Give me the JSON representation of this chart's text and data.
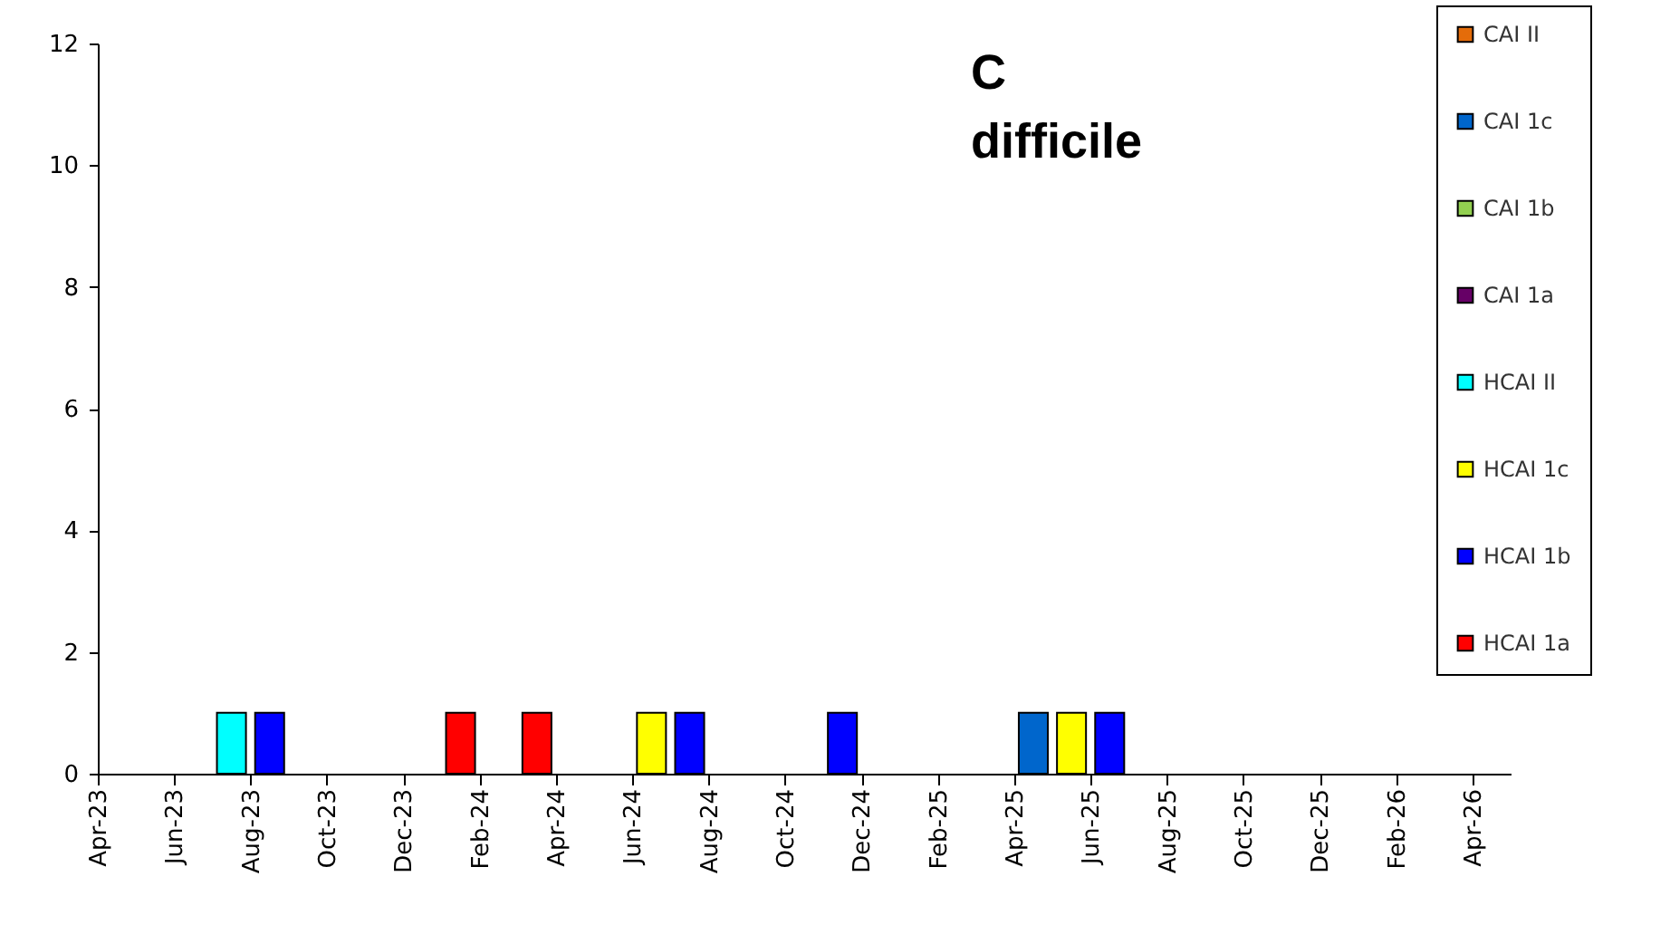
{
  "chart_data": {
    "type": "bar",
    "title": "C difficile",
    "stacked": true,
    "legend": "top right",
    "grid": false,
    "categories": [
      "Apr-23",
      null,
      "Jun-23",
      null,
      "Aug-23",
      null,
      "Oct-23",
      null,
      "Dec-23",
      null,
      "Feb-24",
      null,
      "Apr-24",
      null,
      "Jun-24",
      null,
      "Aug-24",
      null,
      "Oct-24",
      null,
      "Dec-24",
      null,
      "Feb-25",
      null,
      "Apr-25",
      null,
      "Jun-25",
      null,
      "Aug-25",
      null,
      "Oct-25",
      null,
      "Dec-25",
      null,
      "Feb-26",
      null,
      "Apr-26"
    ],
    "ylim": [
      0,
      12
    ],
    "yticks": [
      0,
      2,
      4,
      6,
      8,
      10,
      12
    ],
    "series": [
      {
        "name": "HCAI 1a",
        "color": "#ff0000",
        "values": [
          null,
          null,
          null,
          null,
          null,
          null,
          null,
          null,
          null,
          1,
          null,
          1,
          null,
          null,
          null,
          null,
          null,
          null,
          null,
          null,
          null,
          null,
          null,
          null,
          null,
          null,
          null,
          null,
          null,
          null,
          null,
          null,
          null,
          null,
          null,
          null,
          null
        ]
      },
      {
        "name": "HCAI 1b",
        "color": "#0000ff",
        "values": [
          null,
          null,
          null,
          null,
          1,
          null,
          null,
          null,
          null,
          null,
          null,
          null,
          null,
          null,
          null,
          1,
          null,
          null,
          null,
          1,
          null,
          null,
          null,
          null,
          null,
          null,
          1,
          null,
          null,
          null,
          null,
          null,
          null,
          null,
          null,
          null,
          null
        ]
      },
      {
        "name": "HCAI 1c",
        "color": "#ffff00",
        "values": [
          null,
          null,
          null,
          null,
          null,
          null,
          null,
          null,
          null,
          null,
          null,
          null,
          null,
          null,
          1,
          null,
          null,
          null,
          null,
          null,
          null,
          null,
          null,
          null,
          null,
          1,
          null,
          null,
          null,
          null,
          null,
          null,
          null,
          null,
          null,
          null,
          null
        ]
      },
      {
        "name": "HCAI II",
        "color": "#00ffff",
        "values": [
          null,
          null,
          null,
          1,
          null,
          null,
          null,
          null,
          null,
          null,
          null,
          null,
          null,
          null,
          null,
          null,
          null,
          null,
          null,
          null,
          null,
          null,
          null,
          null,
          null,
          null,
          null,
          null,
          null,
          null,
          null,
          null,
          null,
          null,
          null,
          null,
          null
        ]
      },
      {
        "name": "CAI 1a",
        "color": "#660066",
        "values": [
          null,
          null,
          null,
          null,
          null,
          null,
          null,
          null,
          null,
          null,
          null,
          null,
          null,
          null,
          null,
          null,
          null,
          null,
          null,
          null,
          null,
          null,
          null,
          null,
          null,
          null,
          null,
          null,
          null,
          null,
          null,
          null,
          null,
          null,
          null,
          null,
          null
        ]
      },
      {
        "name": "CAI 1b",
        "color": "#92d050",
        "values": [
          null,
          null,
          null,
          null,
          null,
          null,
          null,
          null,
          null,
          null,
          null,
          null,
          null,
          null,
          null,
          null,
          null,
          null,
          null,
          null,
          null,
          null,
          null,
          null,
          null,
          null,
          null,
          null,
          null,
          null,
          null,
          null,
          null,
          null,
          null,
          null,
          null
        ]
      },
      {
        "name": "CAI 1c",
        "color": "#0066cc",
        "values": [
          null,
          null,
          null,
          null,
          null,
          null,
          null,
          null,
          null,
          null,
          null,
          null,
          null,
          null,
          null,
          null,
          null,
          null,
          null,
          null,
          null,
          null,
          null,
          null,
          1,
          null,
          null,
          null,
          null,
          null,
          null,
          null,
          null,
          null,
          null,
          null,
          null
        ]
      },
      {
        "name": "CAI II",
        "color": "#e46c0a",
        "values": [
          null,
          null,
          null,
          null,
          null,
          null,
          null,
          null,
          null,
          null,
          null,
          null,
          null,
          null,
          null,
          null,
          null,
          null,
          null,
          null,
          null,
          null,
          null,
          null,
          null,
          null,
          null,
          null,
          null,
          null,
          null,
          null,
          null,
          null,
          null,
          null,
          null
        ]
      }
    ]
  }
}
